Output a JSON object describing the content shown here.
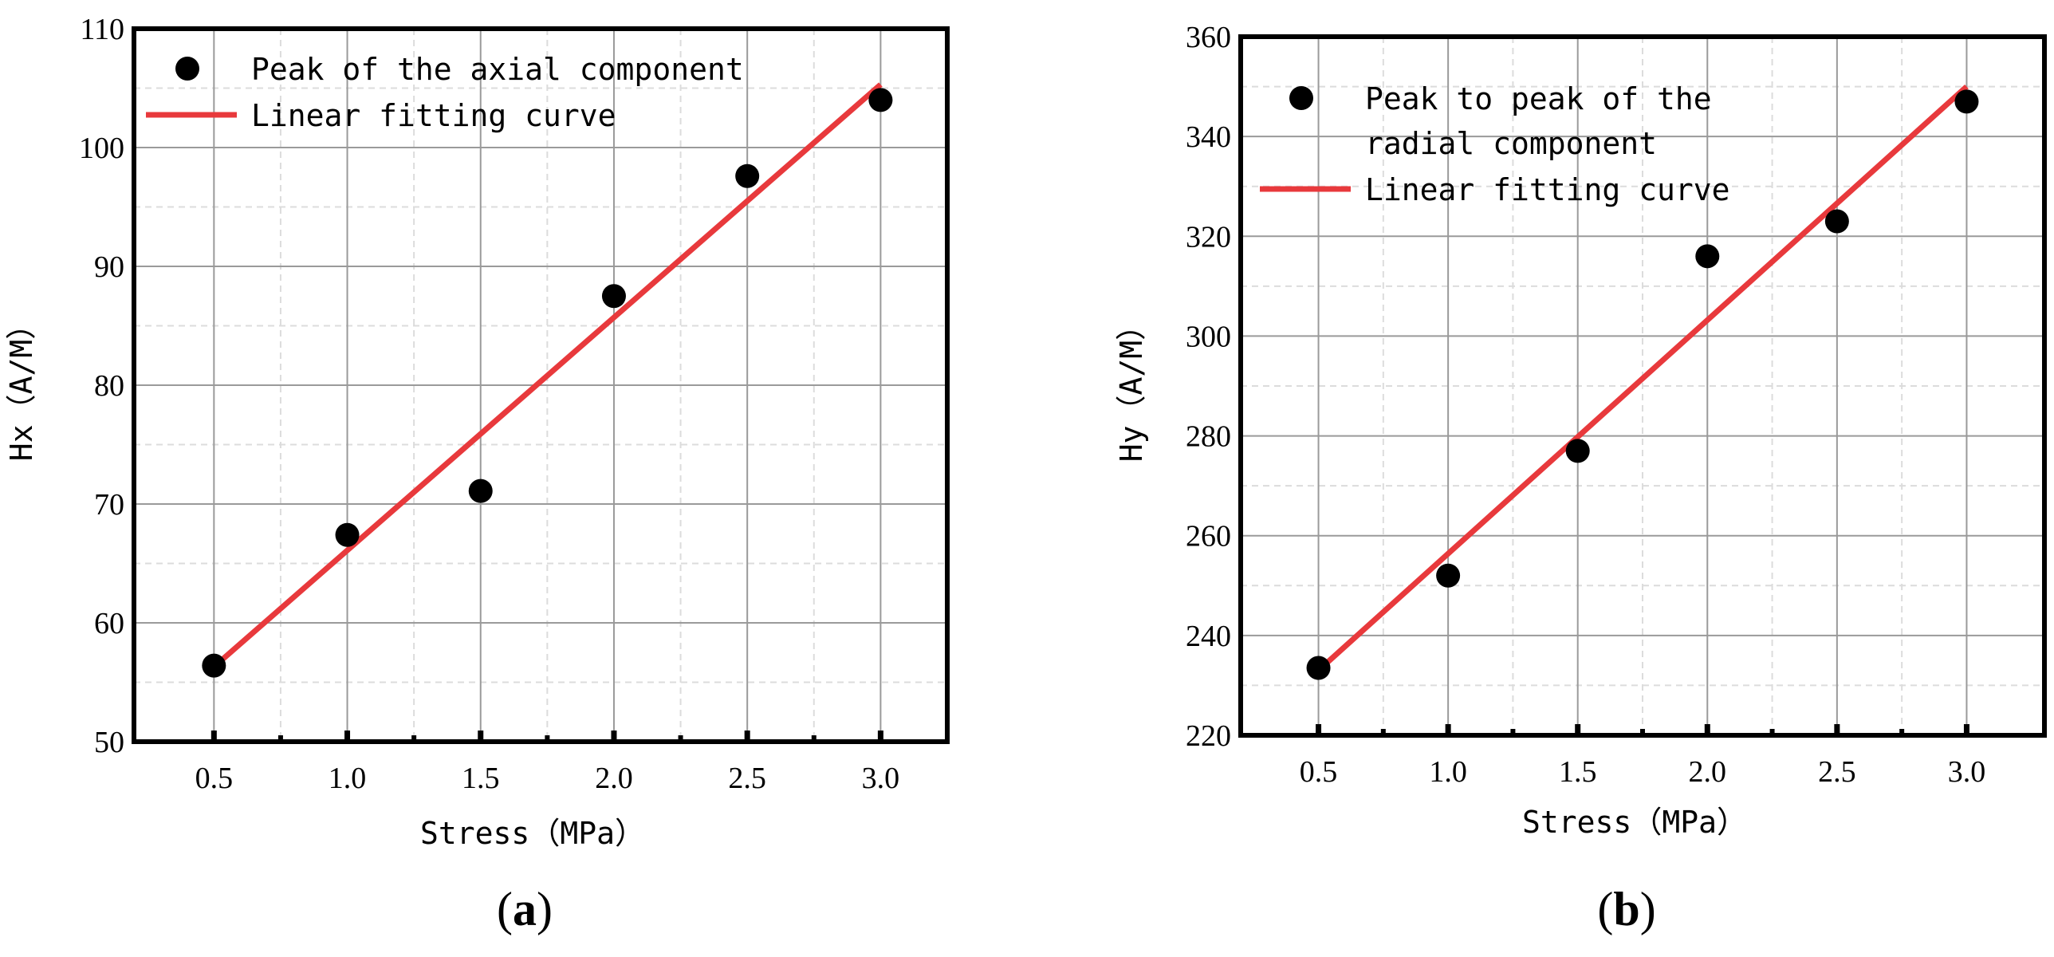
{
  "chart_data": [
    {
      "type": "scatter",
      "panel_label": "a",
      "xlabel": "Stress（MPa）",
      "ylabel": "Hx（A/M）",
      "xlim": [
        0.2,
        3.25
      ],
      "ylim": [
        50,
        110
      ],
      "xticks": [
        0.5,
        1.0,
        1.5,
        2.0,
        2.5,
        3.0
      ],
      "xtick_labels": [
        "0.5",
        "1.0",
        "1.5",
        "2.0",
        "2.5",
        "3.0"
      ],
      "yticks": [
        50,
        60,
        70,
        80,
        90,
        100,
        110
      ],
      "ytick_labels": [
        "50",
        "60",
        "70",
        "80",
        "90",
        "100",
        "110"
      ],
      "grid": true,
      "legend_position": "top-left",
      "series": [
        {
          "name": "Peak of the axial component",
          "kind": "scatter",
          "x": [
            0.5,
            1.0,
            1.5,
            2.0,
            2.5,
            3.0
          ],
          "y": [
            56.4,
            67.4,
            71.1,
            87.5,
            97.6,
            104.0
          ]
        },
        {
          "name": "Linear fitting curve",
          "kind": "line",
          "x": [
            0.5,
            3.0
          ],
          "y": [
            56.3,
            105.3
          ]
        }
      ]
    },
    {
      "type": "scatter",
      "panel_label": "b",
      "xlabel": "Stress（MPa）",
      "ylabel": "Hy（A/M）",
      "xlim": [
        0.2,
        3.3
      ],
      "ylim": [
        220,
        360
      ],
      "xticks": [
        0.5,
        1.0,
        1.5,
        2.0,
        2.5,
        3.0
      ],
      "xtick_labels": [
        "0.5",
        "1.0",
        "1.5",
        "2.0",
        "2.5",
        "3.0"
      ],
      "yticks": [
        220,
        240,
        260,
        280,
        300,
        320,
        340,
        360
      ],
      "ytick_labels": [
        "220",
        "240",
        "260",
        "280",
        "300",
        "320",
        "340",
        "360"
      ],
      "grid": true,
      "legend_position": "top-left",
      "series": [
        {
          "name": "Peak to peak of the radial component",
          "legend_lines": [
            "Peak to peak of the",
            "radial component"
          ],
          "kind": "scatter",
          "x": [
            0.5,
            1.0,
            1.5,
            2.0,
            2.5,
            3.0
          ],
          "y": [
            233.5,
            252.0,
            277.0,
            316.0,
            323.0,
            347.0
          ]
        },
        {
          "name": "Linear fitting curve",
          "kind": "line",
          "x": [
            0.5,
            3.0
          ],
          "y": [
            233.0,
            350.0
          ]
        }
      ]
    }
  ],
  "colors": {
    "points": "#000000",
    "fit_line": "#e8393c",
    "grid_major": "#9a9a9a",
    "grid_minor": "#dcdcdc",
    "frame": "#000000"
  }
}
